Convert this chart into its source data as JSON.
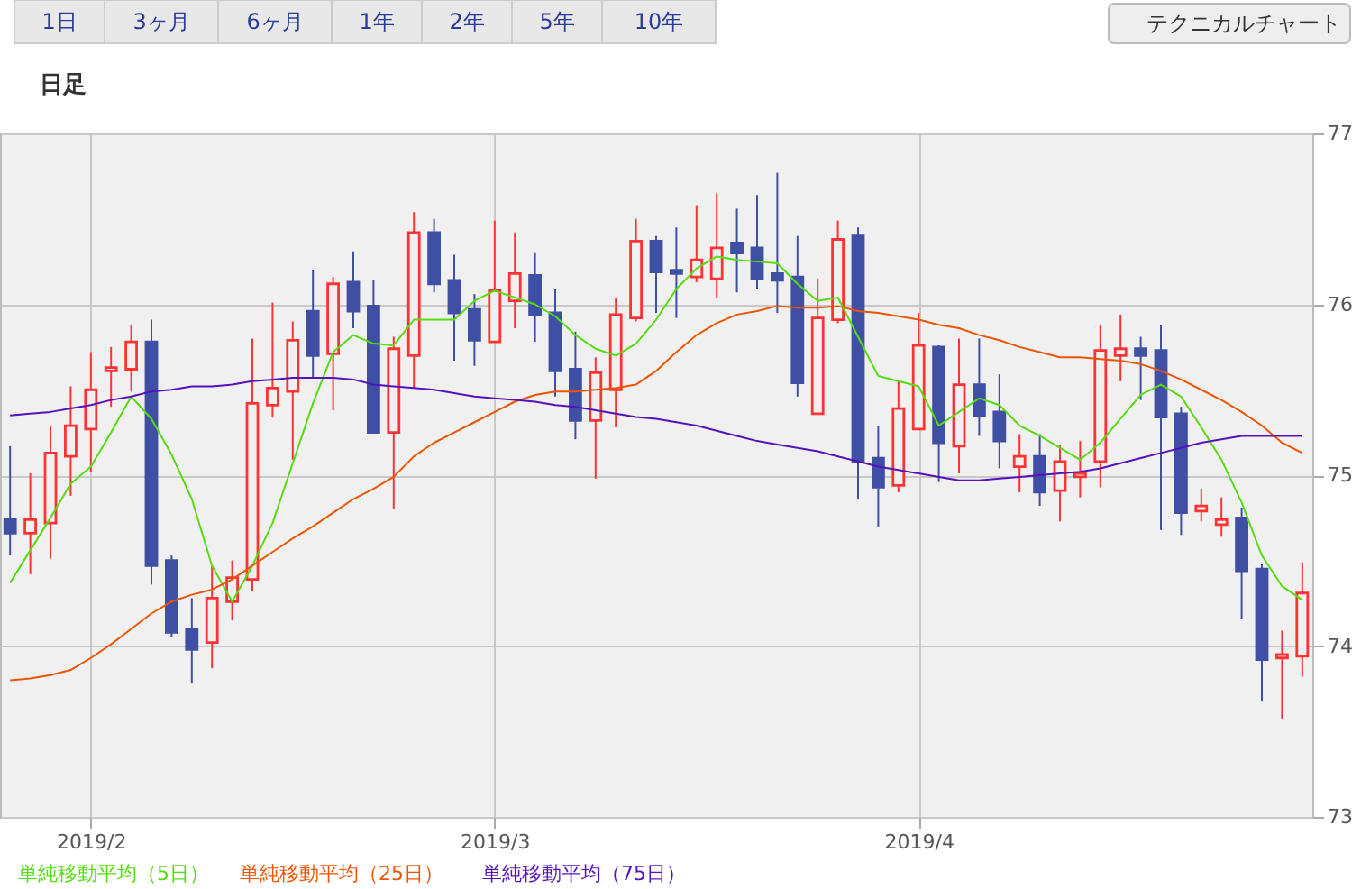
{
  "chart_data": {
    "type": "candlestick",
    "title": "日足",
    "annotations": [
      "1日",
      "3ヶ月",
      "6ヶ月",
      "1年",
      "2年",
      "5年",
      "10年",
      "テクニカルチャート"
    ],
    "categories": [
      null,
      null,
      null,
      null,
      "2019/2",
      null,
      null,
      null,
      null,
      null,
      null,
      null,
      null,
      null,
      null,
      null,
      null,
      null,
      null,
      null,
      null,
      null,
      null,
      null,
      "2019/3",
      null,
      null,
      null,
      null,
      null,
      null,
      null,
      null,
      null,
      null,
      null,
      null,
      null,
      null,
      null,
      null,
      null,
      null,
      null,
      null,
      "2019/4",
      null,
      null,
      null,
      null,
      null,
      null,
      null,
      null,
      null,
      null,
      null,
      null,
      null,
      null,
      null,
      null,
      null,
      null,
      null
    ],
    "ohlc": [
      [
        74.74,
        75.17,
        74.53,
        74.66
      ],
      [
        74.66,
        75.01,
        74.42,
        74.74
      ],
      [
        74.72,
        75.29,
        74.51,
        75.13
      ],
      [
        75.11,
        75.52,
        74.88,
        75.29
      ],
      [
        75.27,
        75.72,
        75.02,
        75.5
      ],
      [
        75.61,
        75.75,
        75.4,
        75.63
      ],
      [
        75.62,
        75.88,
        75.49,
        75.78
      ],
      [
        75.78,
        75.91,
        74.36,
        74.47
      ],
      [
        74.5,
        74.53,
        74.05,
        74.08
      ],
      [
        74.1,
        74.28,
        73.78,
        73.98
      ],
      [
        74.02,
        74.47,
        73.87,
        74.28
      ],
      [
        74.26,
        74.5,
        74.15,
        74.4
      ],
      [
        74.39,
        75.8,
        74.32,
        75.42
      ],
      [
        75.41,
        76.01,
        75.34,
        75.51
      ],
      [
        75.49,
        75.9,
        75.09,
        75.79
      ],
      [
        75.96,
        76.2,
        75.57,
        75.7
      ],
      [
        75.71,
        76.16,
        75.38,
        76.12
      ],
      [
        76.13,
        76.31,
        75.86,
        75.96
      ],
      [
        75.99,
        76.14,
        75.25,
        75.25
      ],
      [
        75.25,
        75.81,
        74.8,
        75.74
      ],
      [
        75.7,
        76.54,
        75.51,
        76.42
      ],
      [
        76.42,
        76.5,
        76.07,
        76.12
      ],
      [
        76.14,
        76.29,
        75.67,
        75.95
      ],
      [
        75.97,
        76.06,
        75.64,
        75.79
      ],
      [
        75.78,
        76.49,
        75.78,
        76.08
      ],
      [
        76.02,
        76.42,
        75.86,
        76.18
      ],
      [
        76.17,
        76.3,
        75.78,
        75.94
      ],
      [
        75.95,
        76.09,
        75.46,
        75.61
      ],
      [
        75.62,
        75.84,
        75.21,
        75.32
      ],
      [
        75.32,
        75.69,
        74.98,
        75.6
      ],
      [
        75.5,
        76.04,
        75.28,
        75.94
      ],
      [
        75.92,
        76.5,
        75.9,
        76.37
      ],
      [
        76.37,
        76.4,
        75.95,
        76.19
      ],
      [
        76.2,
        76.45,
        75.92,
        76.18
      ],
      [
        76.16,
        76.58,
        76.13,
        76.26
      ],
      [
        76.15,
        76.65,
        76.04,
        76.33
      ],
      [
        76.36,
        76.56,
        76.07,
        76.3
      ],
      [
        76.33,
        76.64,
        76.09,
        76.15
      ],
      [
        76.18,
        76.77,
        75.95,
        76.14
      ],
      [
        76.16,
        76.4,
        75.46,
        75.54
      ],
      [
        75.36,
        76.15,
        75.36,
        75.92
      ],
      [
        75.91,
        76.49,
        75.89,
        76.38
      ],
      [
        76.4,
        76.45,
        74.86,
        75.08
      ],
      [
        75.1,
        75.29,
        74.7,
        74.93
      ],
      [
        74.94,
        75.55,
        74.9,
        75.39
      ],
      [
        75.27,
        75.95,
        75.27,
        75.76
      ],
      [
        75.75,
        75.76,
        74.96,
        75.19
      ],
      [
        75.17,
        75.8,
        75.01,
        75.53
      ],
      [
        75.53,
        75.8,
        75.23,
        75.35
      ],
      [
        75.37,
        75.59,
        75.04,
        75.2
      ],
      [
        75.05,
        75.24,
        74.9,
        75.11
      ],
      [
        75.11,
        75.24,
        74.82,
        74.9
      ],
      [
        74.91,
        75.18,
        74.73,
        75.08
      ],
      [
        74.99,
        75.2,
        74.87,
        75.01
      ],
      [
        75.08,
        75.88,
        74.93,
        75.73
      ],
      [
        75.7,
        75.94,
        75.55,
        75.74
      ],
      [
        75.74,
        75.81,
        75.44,
        75.7
      ],
      [
        75.73,
        75.88,
        74.68,
        75.34
      ],
      [
        75.36,
        75.4,
        74.65,
        74.78
      ],
      [
        74.79,
        74.92,
        74.73,
        74.82
      ],
      [
        74.71,
        74.87,
        74.64,
        74.74
      ],
      [
        74.75,
        74.81,
        74.16,
        74.44
      ],
      [
        74.45,
        74.48,
        73.68,
        73.92
      ],
      [
        73.93,
        74.09,
        73.57,
        73.95
      ],
      [
        73.94,
        74.49,
        73.82,
        74.31
      ]
    ],
    "colors": [
      "#3f4fa4",
      "#ff3333",
      "#ff3333",
      "#ff3333",
      "#ff3333",
      "#ff3333",
      "#ff3333",
      "#3f4fa4",
      "#3f4fa4",
      "#3f4fa4",
      "#ff3333",
      "#ff3333",
      "#ff3333",
      "#ff3333",
      "#ff3333",
      "#3f4fa4",
      "#ff3333",
      "#3f4fa4",
      "#3f4fa4",
      "#ff3333",
      "#ff3333",
      "#3f4fa4",
      "#3f4fa4",
      "#3f4fa4",
      "#ff3333",
      "#ff3333",
      "#3f4fa4",
      "#3f4fa4",
      "#3f4fa4",
      "#ff3333",
      "#ff3333",
      "#ff3333",
      "#3f4fa4",
      "#3f4fa4",
      "#ff3333",
      "#ff3333",
      "#3f4fa4",
      "#3f4fa4",
      "#3f4fa4",
      "#3f4fa4",
      "#ff3333",
      "#ff3333",
      "#3f4fa4",
      "#3f4fa4",
      "#ff3333",
      "#ff3333",
      "#3f4fa4",
      "#ff3333",
      "#3f4fa4",
      "#3f4fa4",
      "#ff3333",
      "#3f4fa4",
      "#ff3333",
      "#ff3333",
      "#ff3333",
      "#ff3333",
      "#3f4fa4",
      "#3f4fa4",
      "#3f4fa4",
      "#ff3333",
      "#ff3333",
      "#3f4fa4",
      "#3f4fa4",
      "#ff3333",
      "#ff3333"
    ],
    "series": [
      {
        "name": "単純移動平均（5日）",
        "type": "line",
        "color": "#55dd11",
        "values": [
          74.37,
          74.56,
          74.75,
          74.95,
          75.05,
          75.25,
          75.46,
          75.33,
          75.12,
          74.86,
          74.47,
          74.26,
          74.47,
          74.72,
          75.07,
          75.42,
          75.72,
          75.82,
          75.77,
          75.76,
          75.91,
          75.91,
          75.91,
          76.02,
          76.08,
          76.04,
          76.0,
          75.93,
          75.82,
          75.74,
          75.7,
          75.77,
          75.91,
          76.09,
          76.21,
          76.28,
          76.26,
          76.25,
          76.24,
          76.12,
          76.02,
          76.04,
          75.81,
          75.58,
          75.55,
          75.52,
          75.29,
          75.37,
          75.45,
          75.41,
          75.29,
          75.23,
          75.16,
          75.09,
          75.19,
          75.33,
          75.47,
          75.53,
          75.46,
          75.28,
          75.09,
          74.84,
          74.53,
          74.35,
          74.27
        ]
      },
      {
        "name": "単純移動平均（25日）",
        "type": "line",
        "color": "#ee5500",
        "values": [
          73.8,
          73.81,
          73.83,
          73.86,
          73.93,
          74.01,
          74.1,
          74.19,
          74.26,
          74.3,
          74.33,
          74.39,
          74.47,
          74.55,
          74.63,
          74.7,
          74.78,
          74.86,
          74.92,
          74.99,
          75.11,
          75.19,
          75.25,
          75.31,
          75.37,
          75.43,
          75.47,
          75.49,
          75.49,
          75.5,
          75.51,
          75.53,
          75.61,
          75.72,
          75.82,
          75.89,
          75.94,
          75.96,
          75.99,
          75.98,
          75.98,
          75.99,
          75.96,
          75.95,
          75.93,
          75.91,
          75.88,
          75.86,
          75.82,
          75.79,
          75.75,
          75.72,
          75.69,
          75.69,
          75.68,
          75.67,
          75.65,
          75.61,
          75.56,
          75.5,
          75.44,
          75.37,
          75.29,
          75.19,
          75.13
        ]
      },
      {
        "name": "単純移動平均（75日）",
        "type": "line",
        "color": "#5511bb",
        "values": [
          75.35,
          75.36,
          75.37,
          75.39,
          75.41,
          75.44,
          75.46,
          75.49,
          75.5,
          75.52,
          75.52,
          75.53,
          75.55,
          75.56,
          75.57,
          75.57,
          75.57,
          75.56,
          75.53,
          75.52,
          75.51,
          75.5,
          75.48,
          75.46,
          75.45,
          75.44,
          75.43,
          75.41,
          75.4,
          75.38,
          75.36,
          75.34,
          75.33,
          75.31,
          75.29,
          75.26,
          75.23,
          75.2,
          75.18,
          75.16,
          75.14,
          75.11,
          75.08,
          75.05,
          75.03,
          75.01,
          74.99,
          74.97,
          74.97,
          74.98,
          74.99,
          75.0,
          75.01,
          75.02,
          75.04,
          75.07,
          75.1,
          75.13,
          75.16,
          75.19,
          75.21,
          75.23,
          75.23,
          75.23,
          75.23
        ]
      }
    ],
    "ylim": [
      73,
      77
    ],
    "yticks": [
      73,
      74,
      75,
      76,
      77
    ],
    "grid": true,
    "legend": "bottom"
  }
}
